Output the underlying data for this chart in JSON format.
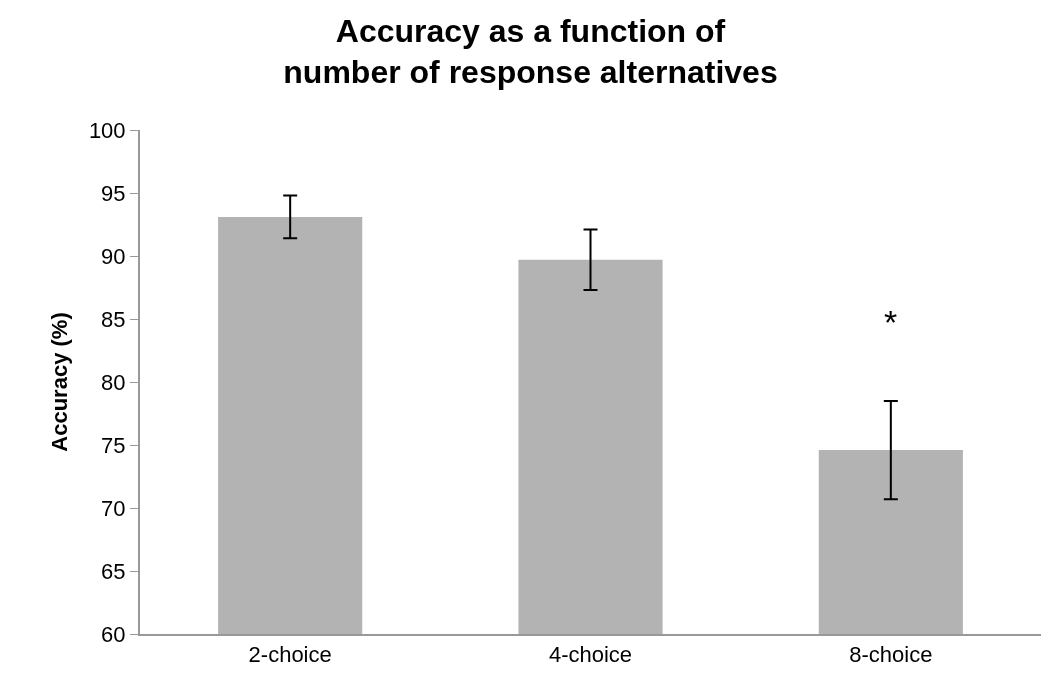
{
  "chart_data": {
    "type": "bar",
    "title": "Accuracy as a function of\nnumber of response alternatives",
    "ylabel": "Accuracy (%)",
    "categories": [
      "2-choice",
      "4-choice",
      "8-choice"
    ],
    "values": [
      93.1,
      89.7,
      74.6
    ],
    "errors": [
      1.7,
      2.4,
      3.9
    ],
    "color": "#b3b3b3",
    "ylim": [
      60,
      100
    ],
    "yticks": [
      60,
      65,
      70,
      75,
      80,
      85,
      90,
      95,
      100
    ],
    "annotations": [
      "*"
    ]
  }
}
